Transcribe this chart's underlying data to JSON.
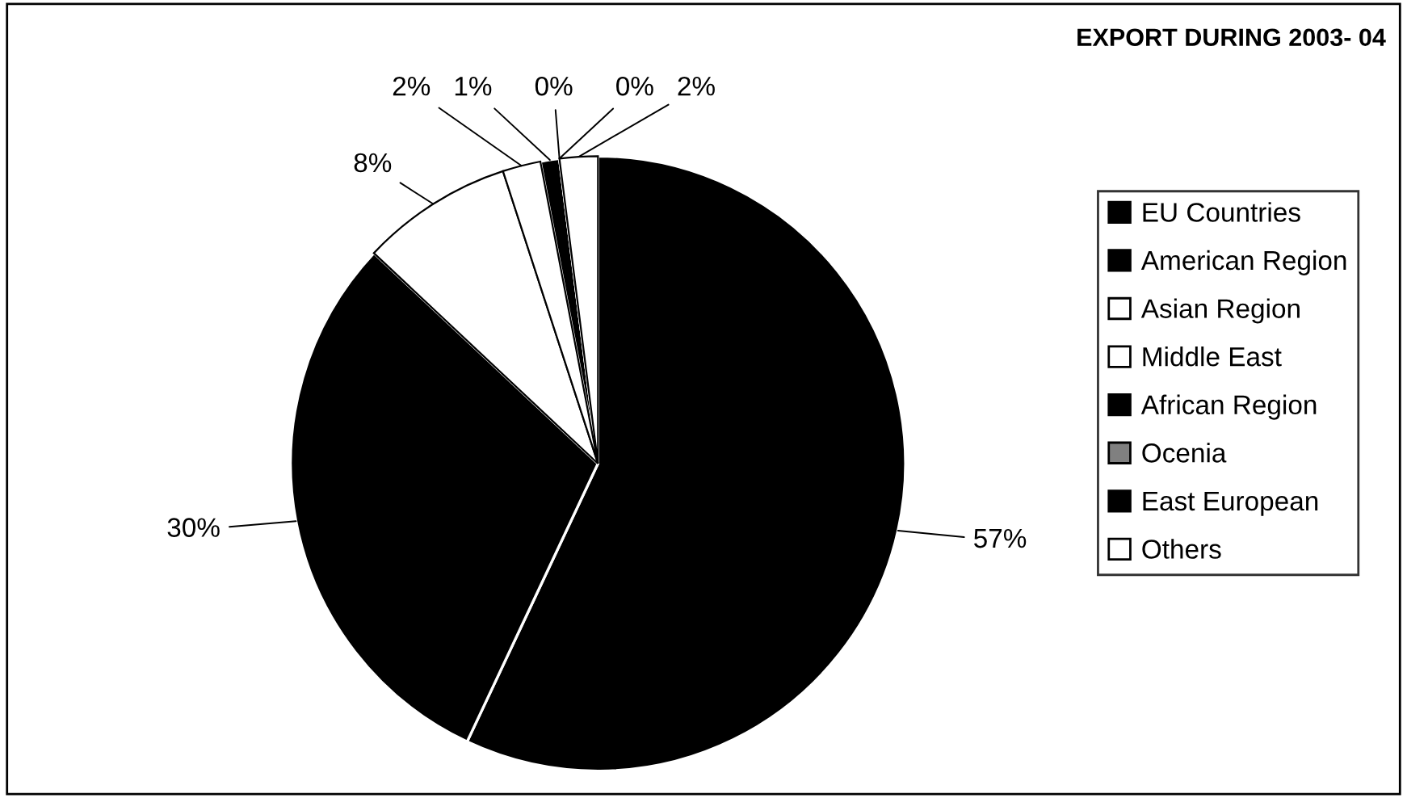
{
  "chart_data": {
    "type": "pie",
    "title": "EXPORT DURING 2003- 04",
    "categories": [
      "EU Countries",
      "American Region",
      "Asian Region",
      "Middle East",
      "African Region",
      "Ocenia",
      "East European",
      "Others"
    ],
    "values": [
      57,
      30,
      8,
      2,
      1,
      0,
      0,
      2
    ],
    "value_labels": [
      "57%",
      "30%",
      "8%",
      "2%",
      "1%",
      "0%",
      "0%",
      "2%"
    ],
    "colors": [
      "#000000",
      "#000000",
      "#ffffff",
      "#ffffff",
      "#000000",
      "#808080",
      "#000000",
      "#ffffff"
    ],
    "legend": "right"
  }
}
